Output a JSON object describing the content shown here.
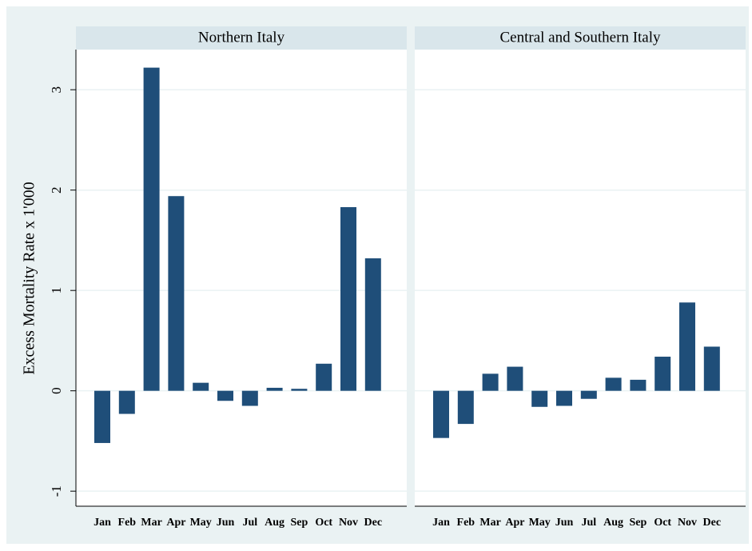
{
  "chart_data": [
    {
      "type": "bar",
      "title": "Northern Italy",
      "y_label": "Excess Mortality Rate x 1'000",
      "categories": [
        "Jan",
        "Feb",
        "Mar",
        "Apr",
        "May",
        "Jun",
        "Jul",
        "Aug",
        "Sep",
        "Oct",
        "Nov",
        "Dec"
      ],
      "values": [
        -0.52,
        -0.23,
        3.22,
        1.94,
        0.08,
        -0.1,
        -0.15,
        0.03,
        0.02,
        0.27,
        1.83,
        1.32
      ],
      "color": "#1f4e79",
      "ylim": [
        -1.15,
        3.4
      ],
      "yticks": [
        -1,
        0,
        1,
        2,
        3
      ],
      "grid": true
    },
    {
      "type": "bar",
      "title": "Central and Southern Italy",
      "categories": [
        "Jan",
        "Feb",
        "Mar",
        "Apr",
        "May",
        "Jun",
        "Jul",
        "Aug",
        "Sep",
        "Oct",
        "Nov",
        "Dec"
      ],
      "values": [
        -0.47,
        -0.33,
        0.17,
        0.24,
        -0.16,
        -0.15,
        -0.08,
        0.13,
        0.11,
        0.34,
        0.88,
        0.44
      ],
      "color": "#1f4e79",
      "ylim": [
        -1.15,
        3.4
      ],
      "yticks": [
        -1,
        0,
        1,
        2,
        3
      ],
      "grid": true
    }
  ]
}
